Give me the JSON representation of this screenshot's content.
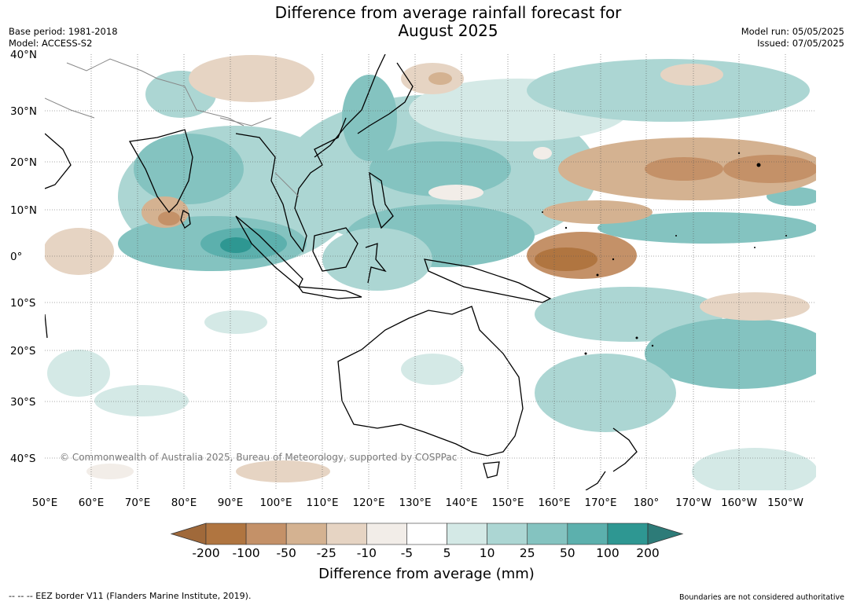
{
  "header": {
    "title_line1": "Difference from average rainfall forecast for",
    "title_line2": "August 2025",
    "base_period": "Base period: 1981-2018",
    "model": "Model: ACCESS-S2",
    "model_run": "Model run: 05/05/2025",
    "issued": "Issued: 07/05/2025"
  },
  "map": {
    "lat_labels": [
      "40°N",
      "30°N",
      "20°N",
      "10°N",
      "0°",
      "10°S",
      "20°S",
      "30°S",
      "40°S"
    ],
    "lon_labels": [
      "50°E",
      "60°E",
      "70°E",
      "80°E",
      "90°E",
      "100°E",
      "110°E",
      "120°E",
      "130°E",
      "140°E",
      "150°E",
      "160°E",
      "170°E",
      "180°",
      "170°W",
      "160°W",
      "150°W"
    ],
    "copyright": "© Commonwealth of Australia 2025, Bureau of Meteorology, supported by COSPPac",
    "grid": true
  },
  "colorbar": {
    "tick_labels": [
      "-200",
      "-100",
      "-50",
      "-25",
      "-10",
      "-5",
      "5",
      "10",
      "25",
      "50",
      "100",
      "200"
    ],
    "colors": [
      "#a0693a",
      "#b07540",
      "#c49168",
      "#d4b291",
      "#e6d4c3",
      "#f2ede8",
      "#ffffff",
      "#d4e9e6",
      "#acd6d3",
      "#84c3c0",
      "#5cb0ad",
      "#2e9792",
      "#2d7b78"
    ],
    "label": "Difference from average (mm)"
  },
  "footer": {
    "eez_legend": "--  --  -- EEZ border V11 (Flanders Marine Institute, 2019).",
    "disclaimer": "Boundaries are not considered authoritative"
  }
}
